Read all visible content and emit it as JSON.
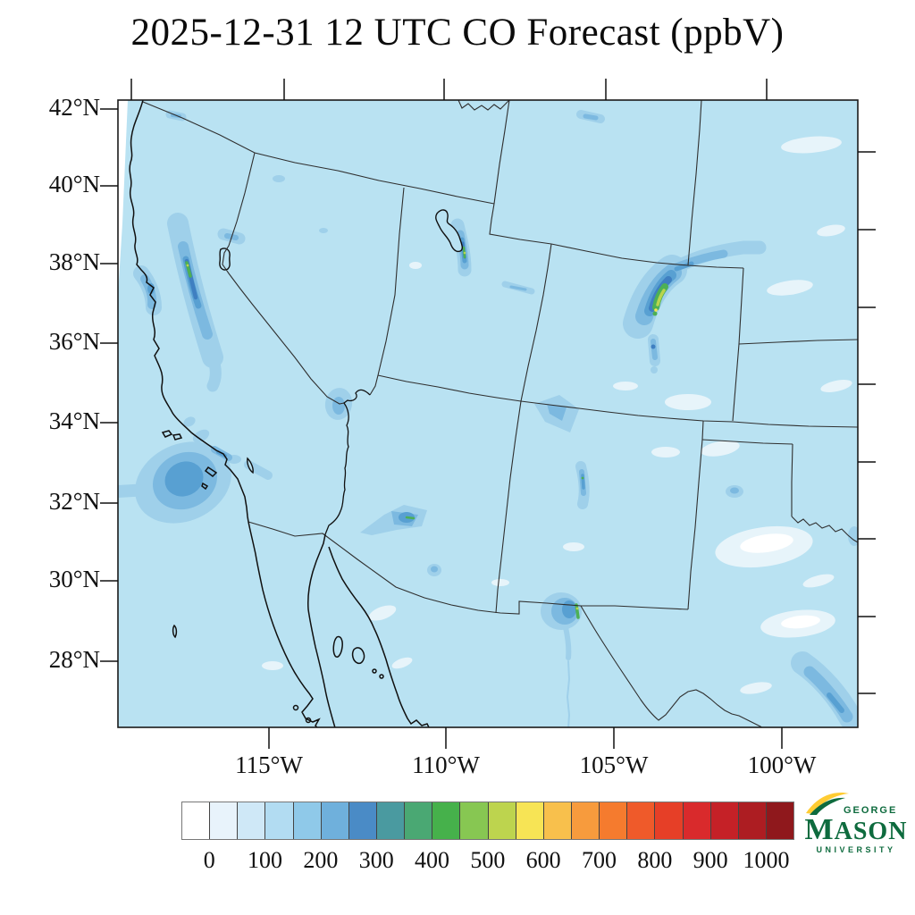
{
  "title": "2025-12-31 12 UTC CO Forecast (ppbV)",
  "axes": {
    "lat_labels": [
      "42°N",
      "40°N",
      "38°N",
      "36°N",
      "34°N",
      "32°N",
      "30°N",
      "28°N"
    ],
    "lon_labels": [
      "115°W",
      "110°W",
      "105°W",
      "100°W"
    ]
  },
  "colorbar": {
    "tick_labels": [
      "0",
      "100",
      "200",
      "300",
      "400",
      "500",
      "600",
      "700",
      "800",
      "900",
      "1000"
    ],
    "cell_colors": [
      "#ffffff",
      "#e8f3fb",
      "#cfe8f7",
      "#b2dcf2",
      "#8fc9e9",
      "#6fb0dc",
      "#4a8bc6",
      "#4a9aa0",
      "#4aa873",
      "#46b14b",
      "#87c752",
      "#bdd44e",
      "#f7e455",
      "#f8c04c",
      "#f79b3d",
      "#f57b2e",
      "#ef5a2a",
      "#e63f27",
      "#d92a2c",
      "#c52127",
      "#ad1d22",
      "#8f181c"
    ]
  },
  "map": {
    "colors": {
      "background": "#b9e2f2",
      "pale": "#e7f4fa",
      "white": "#ffffff",
      "p1": "#9fd0ea",
      "p2": "#7cb9e0",
      "p3": "#58a0d2",
      "p4": "#3f7fc1",
      "green": "#4db055",
      "green2": "#b9d44e",
      "yellow": "#f6e455",
      "border": "#2f2f2f",
      "coast": "#101010"
    }
  },
  "logo": {
    "line1": "GEORGE",
    "line2": "MASON",
    "line3": "UNIVERSITY",
    "green": "#0e6b3e",
    "gold": "#ffcc33"
  }
}
